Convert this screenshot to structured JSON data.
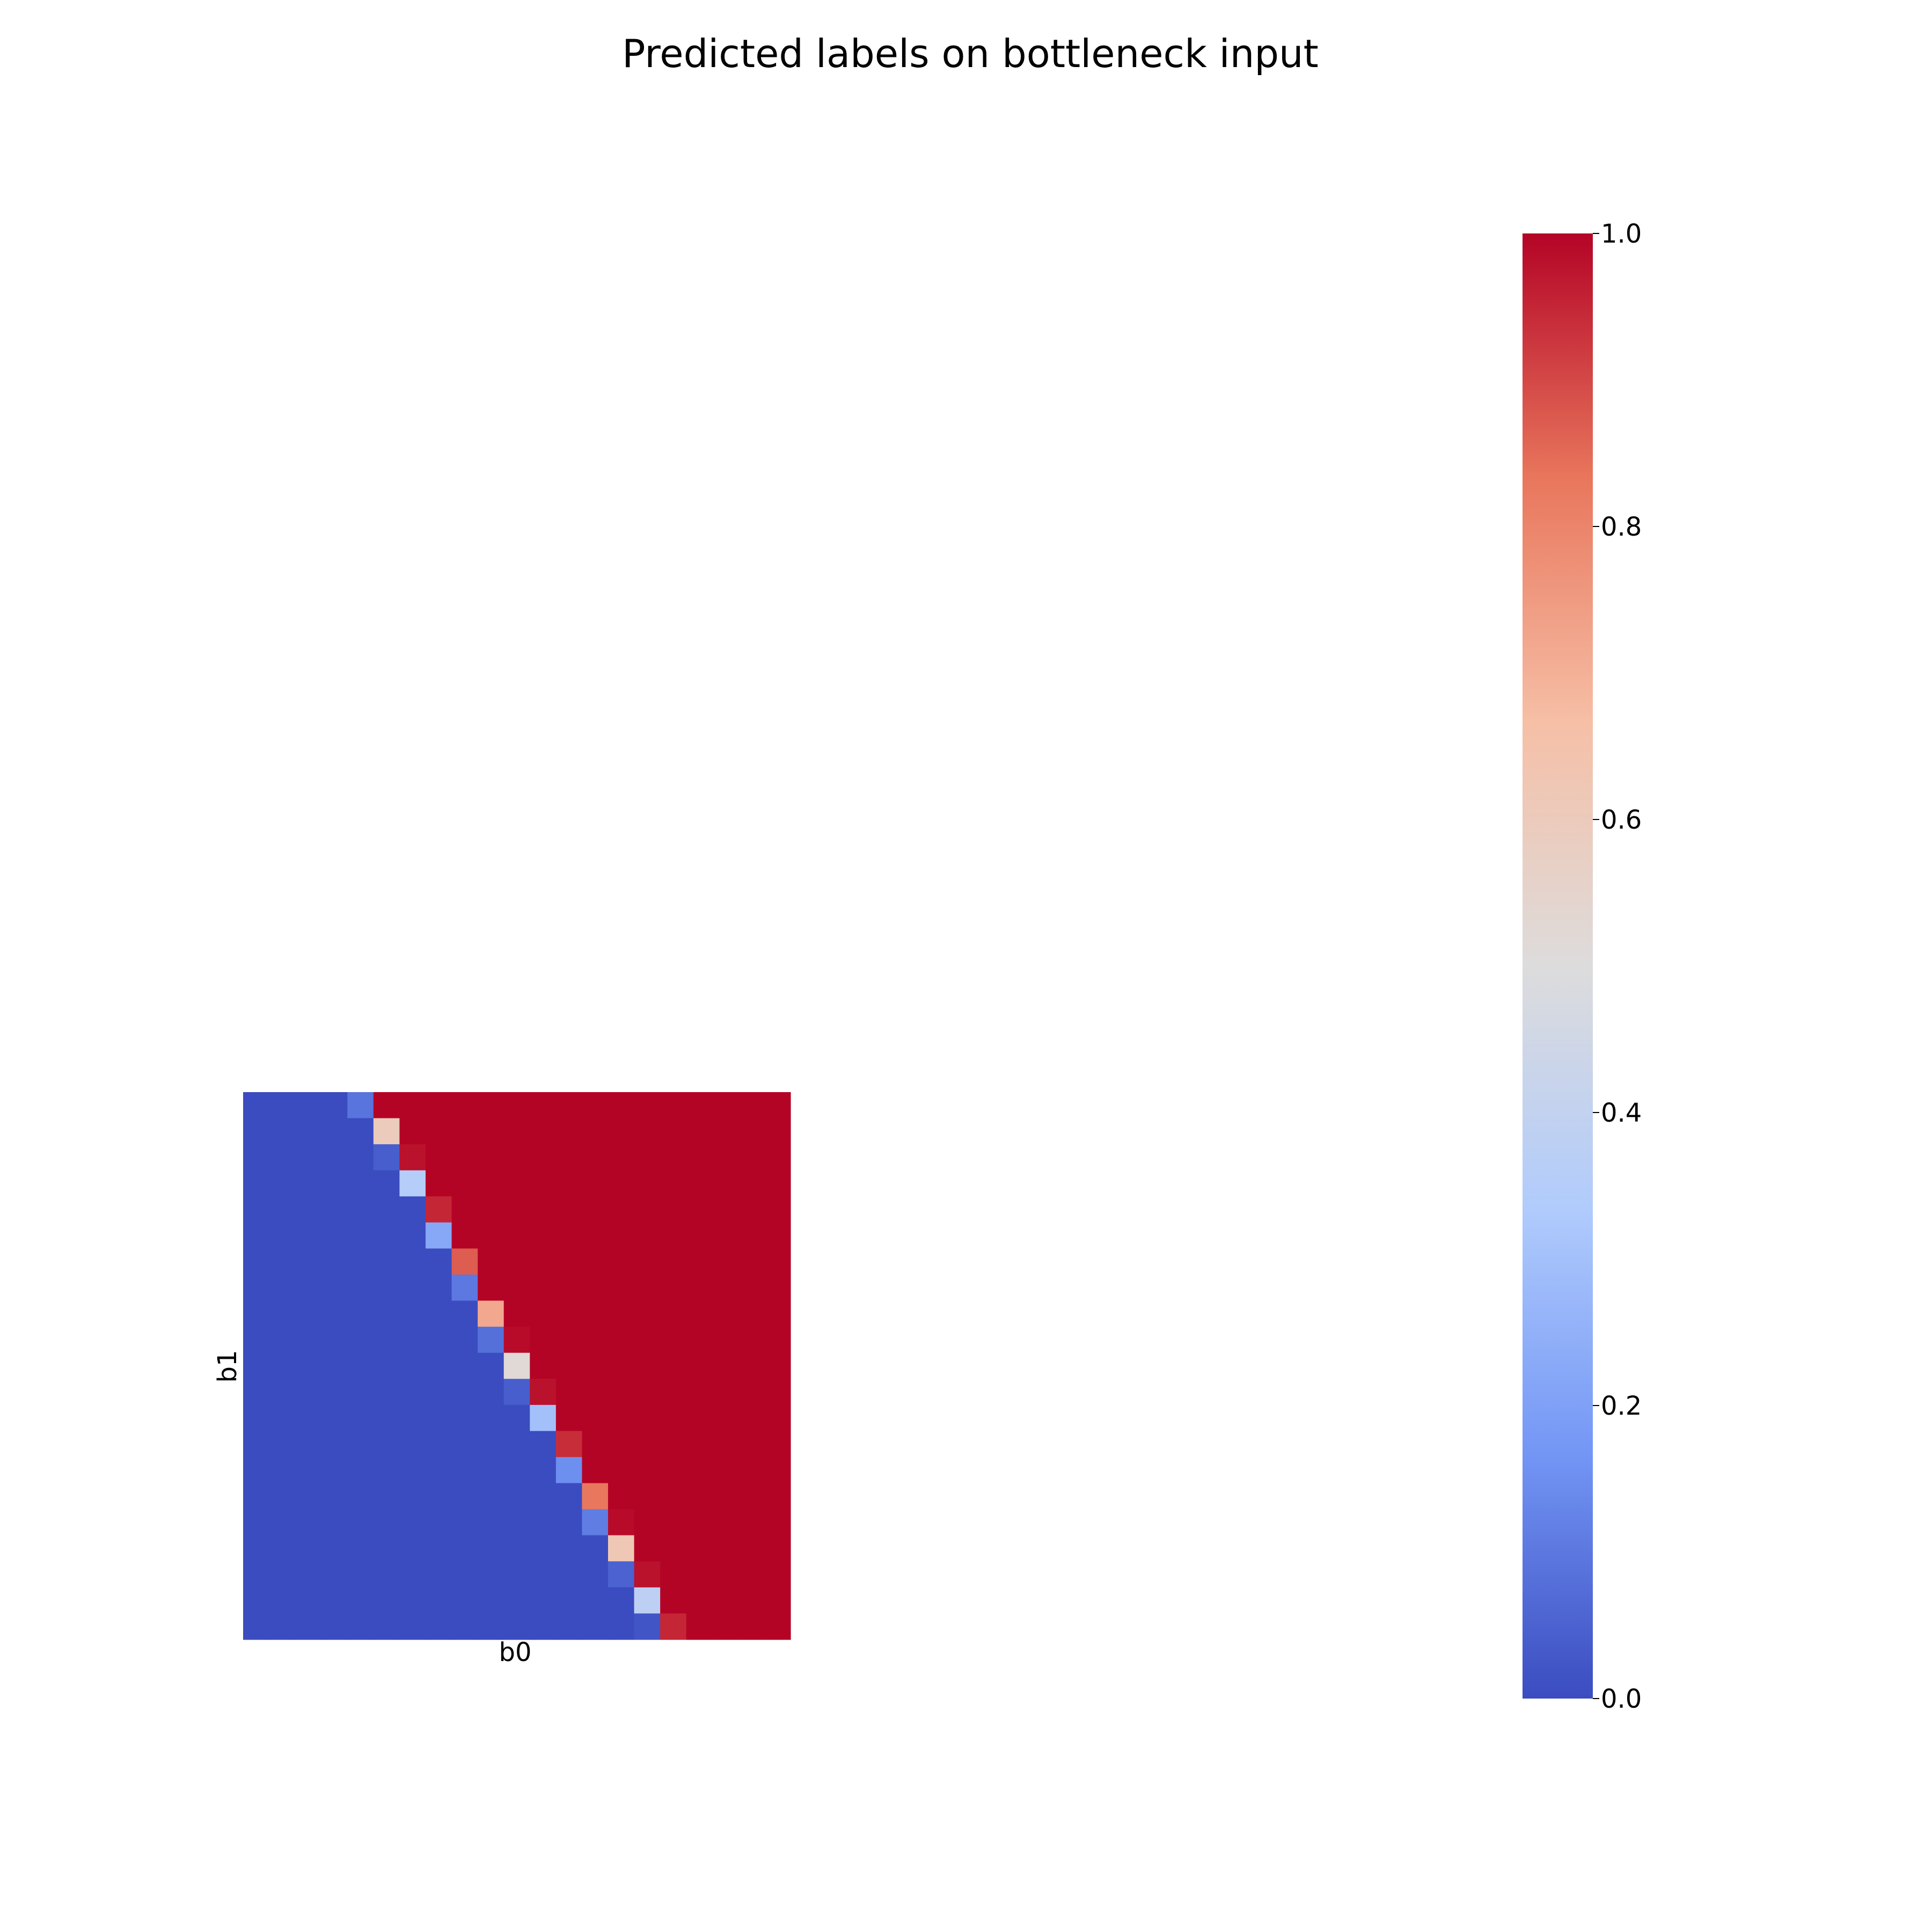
{
  "chart_data": {
    "type": "heatmap",
    "title": "Predicted labels on bottleneck input",
    "xlabel": "b0",
    "ylabel": "b1",
    "grid": false,
    "colormap": "coolwarm",
    "colormap_stops": [
      "#3b4cc0",
      "#7396f5",
      "#b0cbfc",
      "#dddcdc",
      "#f6bfa6",
      "#e8765c",
      "#b40426"
    ],
    "colorbar": {
      "range": [
        0,
        1
      ],
      "ticks": [
        "0.0",
        "0.2",
        "0.4",
        "0.6",
        "0.8",
        "1.0"
      ],
      "tick_values": [
        0.0,
        0.2,
        0.4,
        0.6,
        0.8,
        1.0
      ]
    },
    "n_cols": 21,
    "n_rows": 21,
    "rows": [
      [
        0,
        0,
        0,
        0,
        0.09,
        1,
        1,
        1,
        1,
        1,
        1,
        1,
        1,
        1,
        1,
        1,
        1,
        1,
        1,
        1,
        1
      ],
      [
        0,
        0,
        0,
        0,
        0,
        0.6,
        1,
        1,
        1,
        1,
        1,
        1,
        1,
        1,
        1,
        1,
        1,
        1,
        1,
        1,
        1
      ],
      [
        0,
        0,
        0,
        0,
        0,
        0.04,
        0.98,
        1,
        1,
        1,
        1,
        1,
        1,
        1,
        1,
        1,
        1,
        1,
        1,
        1,
        1
      ],
      [
        0,
        0,
        0,
        0,
        0,
        0,
        0.35,
        1,
        1,
        1,
        1,
        1,
        1,
        1,
        1,
        1,
        1,
        1,
        1,
        1,
        1
      ],
      [
        0,
        0,
        0,
        0,
        0,
        0,
        0,
        0.95,
        1,
        1,
        1,
        1,
        1,
        1,
        1,
        1,
        1,
        1,
        1,
        1,
        1
      ],
      [
        0,
        0,
        0,
        0,
        0,
        0,
        0,
        0.22,
        1,
        1,
        1,
        1,
        1,
        1,
        1,
        1,
        1,
        1,
        1,
        1,
        1
      ],
      [
        0,
        0,
        0,
        0,
        0,
        0,
        0,
        0,
        0.87,
        1,
        1,
        1,
        1,
        1,
        1,
        1,
        1,
        1,
        1,
        1,
        1
      ],
      [
        0,
        0,
        0,
        0,
        0,
        0,
        0,
        0,
        0.1,
        1,
        1,
        1,
        1,
        1,
        1,
        1,
        1,
        1,
        1,
        1,
        1
      ],
      [
        0,
        0,
        0,
        0,
        0,
        0,
        0,
        0,
        0,
        0.72,
        1,
        1,
        1,
        1,
        1,
        1,
        1,
        1,
        1,
        1,
        1
      ],
      [
        0,
        0,
        0,
        0,
        0,
        0,
        0,
        0,
        0,
        0.08,
        0.99,
        1,
        1,
        1,
        1,
        1,
        1,
        1,
        1,
        1,
        1
      ],
      [
        0,
        0,
        0,
        0,
        0,
        0,
        0,
        0,
        0,
        0,
        0.52,
        1,
        1,
        1,
        1,
        1,
        1,
        1,
        1,
        1,
        1
      ],
      [
        0,
        0,
        0,
        0,
        0,
        0,
        0,
        0,
        0,
        0,
        0.04,
        0.98,
        1,
        1,
        1,
        1,
        1,
        1,
        1,
        1,
        1
      ],
      [
        0,
        0,
        0,
        0,
        0,
        0,
        0,
        0,
        0,
        0,
        0,
        0.3,
        1,
        1,
        1,
        1,
        1,
        1,
        1,
        1,
        1
      ],
      [
        0,
        0,
        0,
        0,
        0,
        0,
        0,
        0,
        0,
        0,
        0,
        0,
        0.94,
        1,
        1,
        1,
        1,
        1,
        1,
        1,
        1
      ],
      [
        0,
        0,
        0,
        0,
        0,
        0,
        0,
        0,
        0,
        0,
        0,
        0,
        0.15,
        1,
        1,
        1,
        1,
        1,
        1,
        1,
        1
      ],
      [
        0,
        0,
        0,
        0,
        0,
        0,
        0,
        0,
        0,
        0,
        0,
        0,
        0,
        0.83,
        1,
        1,
        1,
        1,
        1,
        1,
        1
      ],
      [
        0,
        0,
        0,
        0,
        0,
        0,
        0,
        0,
        0,
        0,
        0,
        0,
        0,
        0.11,
        0.99,
        1,
        1,
        1,
        1,
        1,
        1
      ],
      [
        0,
        0,
        0,
        0,
        0,
        0,
        0,
        0,
        0,
        0,
        0,
        0,
        0,
        0,
        0.62,
        1,
        1,
        1,
        1,
        1,
        1
      ],
      [
        0,
        0,
        0,
        0,
        0,
        0,
        0,
        0,
        0,
        0,
        0,
        0,
        0,
        0,
        0.05,
        0.98,
        1,
        1,
        1,
        1,
        1
      ],
      [
        0,
        0,
        0,
        0,
        0,
        0,
        0,
        0,
        0,
        0,
        0,
        0,
        0,
        0,
        0,
        0.38,
        1,
        1,
        1,
        1,
        1
      ],
      [
        0,
        0,
        0,
        0,
        0,
        0,
        0,
        0,
        0,
        0,
        0,
        0,
        0,
        0,
        0,
        0.02,
        0.95,
        1,
        1,
        1,
        1
      ]
    ]
  }
}
